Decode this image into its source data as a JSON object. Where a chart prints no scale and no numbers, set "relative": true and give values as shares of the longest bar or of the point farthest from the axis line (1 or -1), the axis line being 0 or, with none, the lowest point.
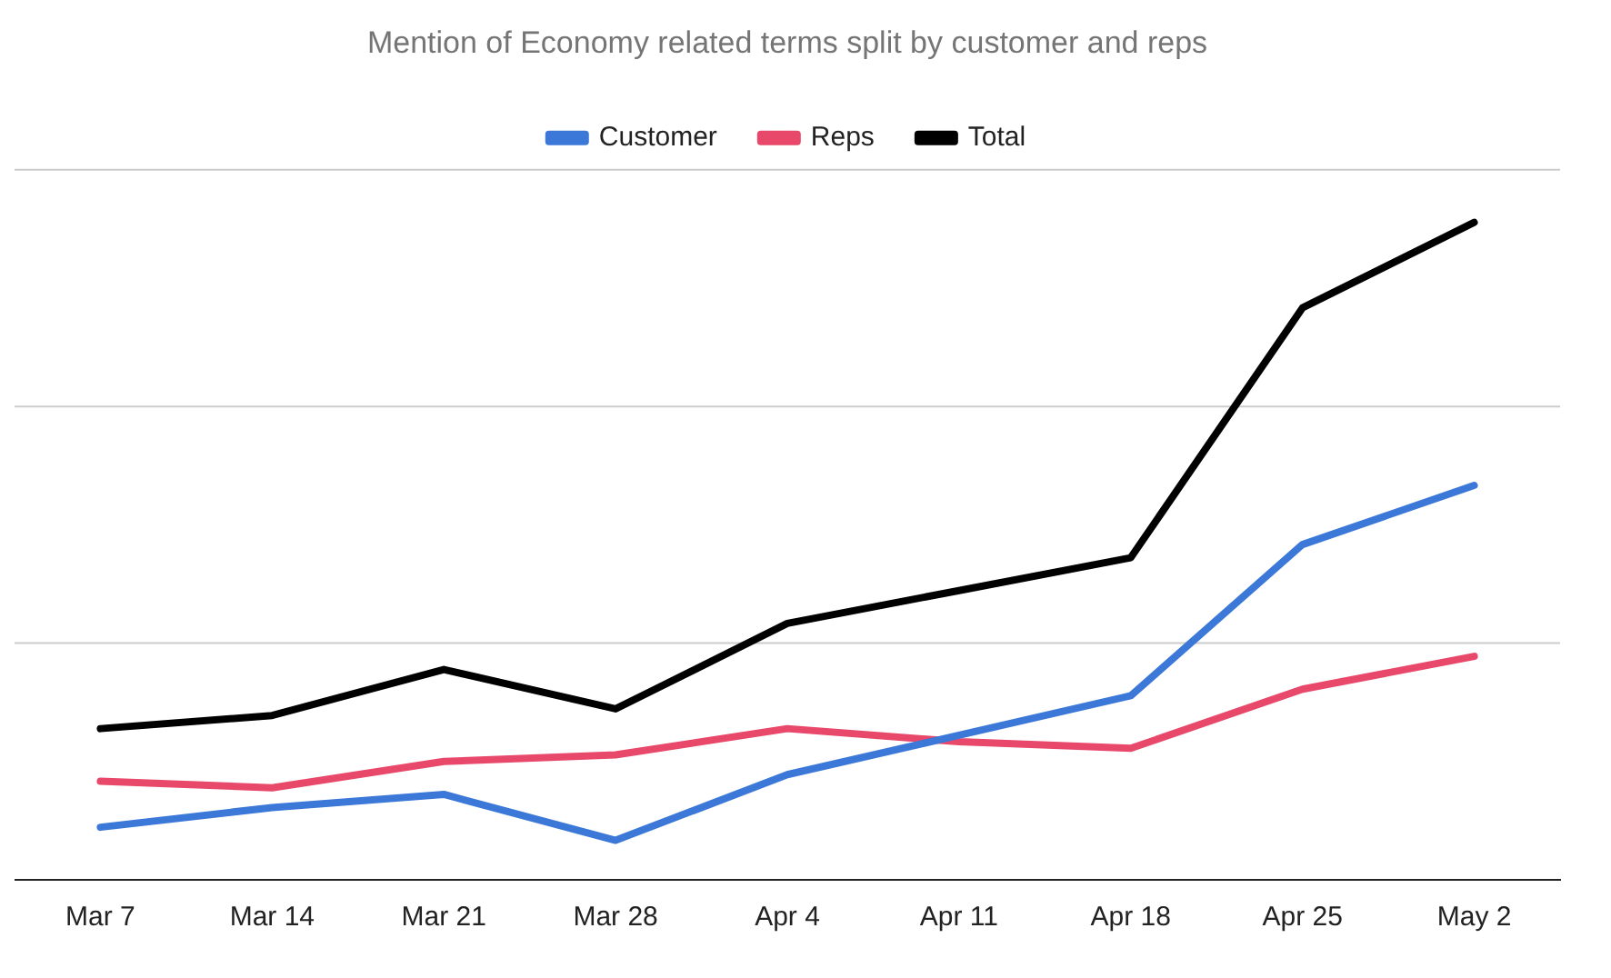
{
  "chart_data": {
    "type": "line",
    "title": "Mention of Economy related terms split by customer and reps",
    "relative": true,
    "ref_lines": [
      {
        "axis": "y",
        "value": 0.36,
        "color": "#cccccc"
      },
      {
        "axis": "y",
        "value": 0.72,
        "color": "#cccccc"
      },
      {
        "axis": "y",
        "value": 1.08,
        "color": "#cccccc"
      }
    ],
    "legend": "top",
    "marker": "none",
    "line_style": "solid",
    "categories": [
      "Mar 7",
      "Mar 14",
      "Mar 21",
      "Mar 28",
      "Apr 4",
      "Apr 11",
      "Apr 18",
      "Apr 25",
      "May 2"
    ],
    "series": [
      {
        "name": "Customer",
        "color": "#3c78d8",
        "values": [
          0.08,
          0.11,
          0.13,
          0.06,
          0.16,
          0.22,
          0.28,
          0.51,
          0.6
        ]
      },
      {
        "name": "Reps",
        "color": "#e8486a",
        "values": [
          0.15,
          0.14,
          0.18,
          0.19,
          0.23,
          0.21,
          0.2,
          0.29,
          0.34
        ]
      },
      {
        "name": "Total",
        "color": "#000000",
        "values": [
          0.23,
          0.25,
          0.32,
          0.26,
          0.39,
          0.44,
          0.49,
          0.87,
          1
        ]
      }
    ]
  }
}
